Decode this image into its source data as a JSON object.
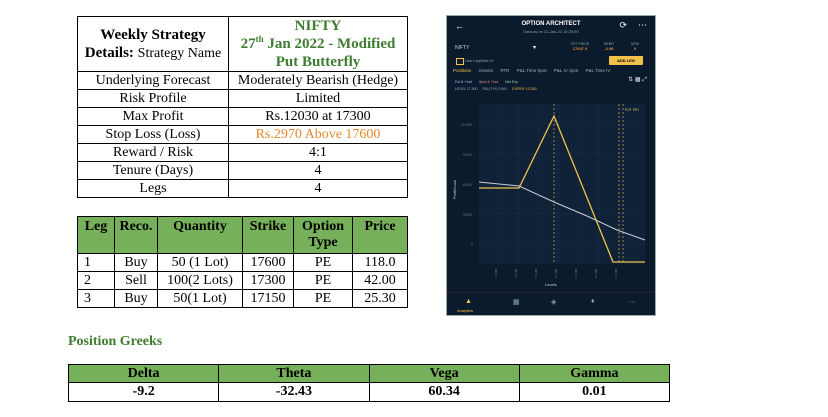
{
  "details": {
    "head_left_bold": "Weekly Strategy Details:",
    "head_left_plain": "Strategy Name",
    "head_right_line1": "NIFTY",
    "head_right_date_pre": "27",
    "head_right_date_sup": "th",
    "head_right_date_post": " Jan 2022 - Modified",
    "head_right_line3": "Put Butterfly",
    "rows": [
      {
        "label": "Underlying Forecast",
        "value": "Moderately Bearish (Hedge)"
      },
      {
        "label": "Risk Profile",
        "value": "Limited"
      },
      {
        "label": "Max Profit",
        "value": "Rs.12030 at 17300"
      },
      {
        "label": "Stop Loss (Loss)",
        "value": "Rs.2970 Above 17600"
      },
      {
        "label": "Reward / Risk",
        "value": "4:1"
      },
      {
        "label": "Tenure (Days)",
        "value": "4"
      },
      {
        "label": "Legs",
        "value": "4"
      }
    ]
  },
  "legs": {
    "headers": [
      "Leg",
      "Reco.",
      "Quantity",
      "Strike",
      "Option Type",
      "Price"
    ],
    "rows": [
      [
        "1",
        "Buy",
        "50 (1 Lot)",
        "17600",
        "PE",
        "118.0"
      ],
      [
        "2",
        "Sell",
        "100(2 Lots)",
        "17300",
        "PE",
        "42.00"
      ],
      [
        "3",
        "Buy",
        "50(1 Lot)",
        "17150",
        "PE",
        "25.30"
      ]
    ]
  },
  "greeks": {
    "title": "Position Greeks",
    "headers": [
      "Delta",
      "Theta",
      "Vega",
      "Gamma"
    ],
    "values": [
      "-9.2",
      "-32.43",
      "60.34",
      "0.01"
    ]
  },
  "phone": {
    "title": "OPTION ARCHITECT",
    "subtitle": "Data as on 21-Jan-22 15:29:59",
    "symbol": "NIFTY",
    "stats": [
      {
        "label": "FUT PRICE",
        "value": "17647.9"
      },
      {
        "label": "DEBIT",
        "value": "-2.90"
      },
      {
        "label": "MTM",
        "value": "0"
      }
    ],
    "checkbox_label": "Use LegWise IV",
    "add_leg": "ADD LEG",
    "tabs": [
      "Positions",
      "Greeks",
      "RTR",
      "P&L Time Spot",
      "P&L IV Spot",
      "P&L Time IV"
    ],
    "legend": [
      "Fut & +1sd",
      "Spot & +1sd",
      "Mkt Exp"
    ],
    "levels": [
      "LEVEL 17,300",
      "P&L(T+0) 3,961",
      "EXPIRY 12,030"
    ],
    "fut_label": "FUT PRI",
    "x_label": "Levels",
    "y_label": "Profit/Loss",
    "nav_label": "Analytics",
    "colors": {
      "accent": "#f0c14b",
      "bg": "#0c1a2e",
      "expiry_line": "#f0c14b",
      "t0_line": "#c9ccd6"
    }
  }
}
